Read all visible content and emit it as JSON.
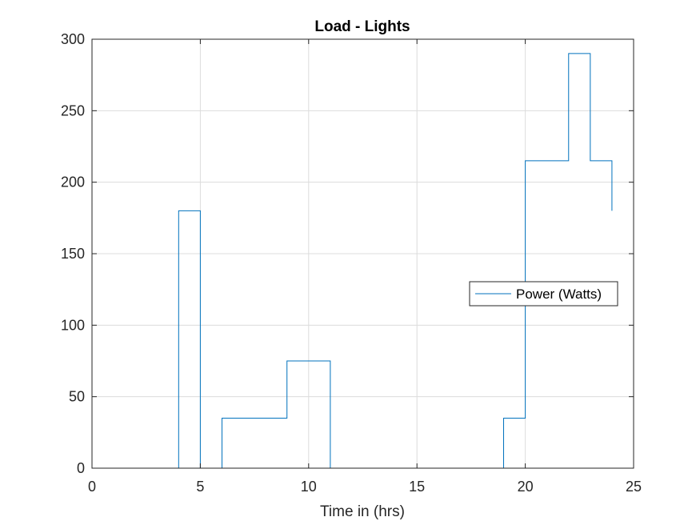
{
  "chart_data": {
    "type": "line",
    "title": "Load - Lights",
    "xlabel": "Time in (hrs)",
    "ylabel": "",
    "xlim": [
      0,
      25
    ],
    "ylim": [
      0,
      300
    ],
    "x_ticks": [
      0,
      5,
      10,
      15,
      20,
      25
    ],
    "y_ticks": [
      0,
      50,
      100,
      150,
      200,
      250,
      300
    ],
    "grid": true,
    "legend_position": "right",
    "series": [
      {
        "name": "Power (Watts)",
        "color": "#0072BD",
        "step": true,
        "x": [
          0,
          4,
          4,
          5,
          5,
          6,
          6,
          9,
          9,
          11,
          11,
          19,
          19,
          20,
          20,
          22,
          22,
          23,
          23,
          24,
          24
        ],
        "y": [
          0,
          0,
          180,
          180,
          0,
          0,
          35,
          35,
          75,
          75,
          0,
          0,
          35,
          35,
          215,
          215,
          290,
          290,
          215,
          215,
          180
        ]
      }
    ]
  }
}
